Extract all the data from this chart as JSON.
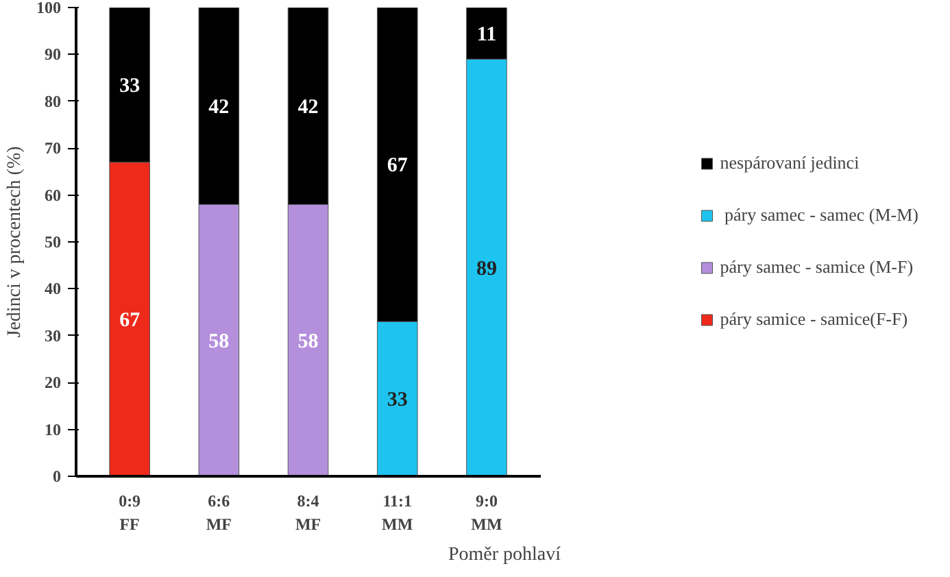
{
  "chart_data": {
    "type": "bar",
    "stacked": true,
    "xlabel": "Poměr pohlaví",
    "ylabel": "Jedinci v procentech (%)",
    "categories": [
      "0:9\nFF",
      "6:6\nMF",
      "8:4\nMF",
      "11:1\nMM",
      "9:0\nMM"
    ],
    "series": [
      {
        "name": "páry samice - samice(F-F)",
        "color": "#ee2a1b",
        "values": [
          67,
          null,
          null,
          null,
          null
        ]
      },
      {
        "name": "páry samec - samice (M-F)",
        "color": "#b48fdc",
        "values": [
          null,
          58,
          58,
          null,
          null
        ]
      },
      {
        "name": " páry samec - samec (M-M)",
        "color": "#1ec4ef",
        "values": [
          null,
          null,
          null,
          33,
          89
        ]
      },
      {
        "name": "nespárovaní jedinci",
        "color": "#000000",
        "values": [
          33,
          42,
          42,
          67,
          11
        ]
      }
    ],
    "ylim": [
      0,
      100
    ],
    "yticks": [
      0,
      10,
      20,
      30,
      40,
      50,
      60,
      70,
      80,
      90,
      100
    ],
    "grid": false,
    "legend": "right",
    "data_labels": true
  }
}
